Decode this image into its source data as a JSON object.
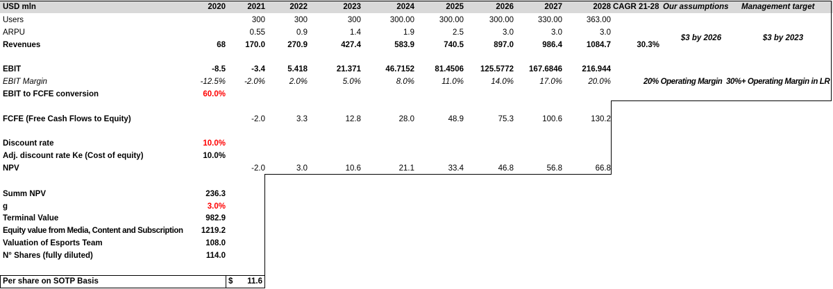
{
  "header": {
    "label": "USD mln",
    "years": [
      "2020",
      "2021",
      "2022",
      "2023",
      "2024",
      "2025",
      "2026",
      "2027",
      "2028"
    ],
    "cagr": "CAGR 21-28",
    "assumptions": "Our assumptions",
    "management": "Management target"
  },
  "users": {
    "label": "Users",
    "values": [
      "",
      "300",
      "300",
      "300",
      "300.00",
      "300.00",
      "300.00",
      "330.00",
      "363.00"
    ]
  },
  "arpu": {
    "label": "ARPU",
    "values": [
      "",
      "0.55",
      "0.9",
      "1.4",
      "1.9",
      "2.5",
      "3.0",
      "3.0",
      "3.0"
    ],
    "assumption": "$3 by 2026",
    "management": "$3 by 2023"
  },
  "revenues": {
    "label": "Revenues",
    "values": [
      "68",
      "170.0",
      "270.9",
      "427.4",
      "583.9",
      "740.5",
      "897.0",
      "986.4",
      "1084.7"
    ],
    "cagr": "30.3%"
  },
  "ebit": {
    "label": "EBIT",
    "values": [
      "-8.5",
      "-3.4",
      "5.418",
      "21.371",
      "46.7152",
      "81.4506",
      "125.5772",
      "167.6846",
      "216.944"
    ]
  },
  "ebit_margin": {
    "label": "EBIT Margin",
    "values": [
      "-12.5%",
      "-2.0%",
      "2.0%",
      "5.0%",
      "8.0%",
      "11.0%",
      "14.0%",
      "17.0%",
      "20.0%"
    ],
    "assumption": "20% Operating Margin",
    "management": "30%+ Operating Margin in LR"
  },
  "ebit_fcfe": {
    "label": "EBIT to FCFE conversion",
    "value": "60.0%"
  },
  "fcfe": {
    "label": "FCFE (Free Cash Flows to Equity)",
    "values": [
      "",
      "-2.0",
      "3.3",
      "12.8",
      "28.0",
      "48.9",
      "75.3",
      "100.6",
      "130.2"
    ]
  },
  "discount": {
    "label": "Discount rate",
    "value": "10.0%"
  },
  "adj_discount": {
    "label": "Adj. discount rate Ke (Cost of equity)",
    "value": "10.0%"
  },
  "npv": {
    "label": "NPV",
    "values": [
      "",
      "-2.0",
      "3.0",
      "10.6",
      "21.1",
      "33.4",
      "46.8",
      "56.8",
      "66.8"
    ]
  },
  "summ_npv": {
    "label": "Summ NPV",
    "value": "236.3"
  },
  "g": {
    "label": "g",
    "value": "3.0%"
  },
  "terminal": {
    "label": "Terminal Value",
    "value": "982.9"
  },
  "equity": {
    "label": "Equity value from Media, Content and Subscription",
    "value": "1219.2"
  },
  "esports": {
    "label": "Valuation of Esports Team",
    "value": "108.0"
  },
  "shares": {
    "label": "N° Shares (fully diluted)",
    "value": "114.0"
  },
  "per_share": {
    "label": "Per share on SOTP Basis",
    "currency": "$",
    "value": "11.6"
  },
  "colors": {
    "header_bg": "#d9d9d9",
    "highlight": "#ff0000"
  }
}
